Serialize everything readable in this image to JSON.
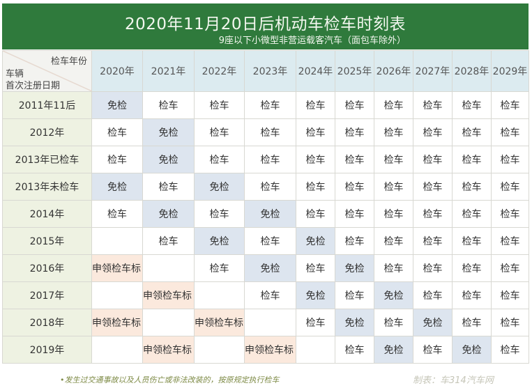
{
  "banner": {
    "title": "2020年11月20日后机动车检车时刻表",
    "subtitle": "9座以下小微型非营运载客汽车（面包车除外）",
    "color": "#2f7a3c"
  },
  "table": {
    "corner": {
      "top": "检车年份",
      "mid": "车辆",
      "bottom": "首次注册日期"
    },
    "columns": [
      "2020年",
      "2021年",
      "2022年",
      "2023年",
      "2024年",
      "2025年",
      "2026年",
      "2027年",
      "2028年",
      "2029年"
    ],
    "rows": [
      {
        "label": "2011年11后",
        "cells": [
          "免检",
          "检车",
          "检车",
          "检车",
          "检车",
          "检车",
          "检车",
          "检车",
          "检车",
          "检车"
        ]
      },
      {
        "label": "2012年",
        "cells": [
          "检车",
          "免检",
          "检车",
          "检车",
          "检车",
          "检车",
          "检车",
          "检车",
          "检车",
          "检车"
        ]
      },
      {
        "label": "2013年已检车",
        "cells": [
          "检车",
          "免检",
          "检车",
          "检车",
          "检车",
          "检车",
          "检车",
          "检车",
          "检车",
          "检车"
        ]
      },
      {
        "label": "2013年未检车",
        "cells": [
          "免检",
          "检车",
          "免检",
          "检车",
          "检车",
          "检车",
          "检车",
          "检车",
          "检车",
          "检车"
        ]
      },
      {
        "label": "2014年",
        "cells": [
          "检车",
          "免检",
          "检车",
          "免检",
          "检车",
          "检车",
          "检车",
          "检车",
          "检车",
          "检车"
        ]
      },
      {
        "label": "2015年",
        "cells": [
          "",
          "检车",
          "免检",
          "检车",
          "免检",
          "检车",
          "检车",
          "检车",
          "检车",
          "检车"
        ]
      },
      {
        "label": "2016年",
        "cells": [
          "申领检车标",
          "",
          "检车",
          "免检",
          "检车",
          "免检",
          "检车",
          "检车",
          "检车",
          "检车"
        ]
      },
      {
        "label": "2017年",
        "cells": [
          "",
          "申领检车标",
          "",
          "检车",
          "免检",
          "检车",
          "免检",
          "检车",
          "检车",
          "检车"
        ]
      },
      {
        "label": "2018年",
        "cells": [
          "申领检车标",
          "",
          "申领检车标",
          "",
          "检车",
          "免检",
          "检车",
          "免检",
          "检车",
          "检车"
        ]
      },
      {
        "label": "2019年",
        "cells": [
          "",
          "申领检车标",
          "",
          "申领检车标",
          "",
          "检车",
          "免检",
          "检车",
          "免检",
          "检车"
        ]
      }
    ],
    "colors": {
      "free": "#dde5ef",
      "label": "#fbe9dd",
      "header": "#dcebf0",
      "rowhead": "#eef2e2"
    }
  },
  "footer": {
    "note": "•发生过交通事故以及人员伤亡或非法改装的，按原规定执行检车",
    "credit": "制表：车314汽车网"
  }
}
